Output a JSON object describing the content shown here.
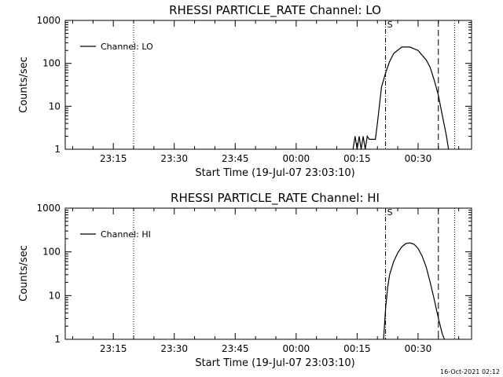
{
  "footer_timestamp": "16-Oct-2021 02:12",
  "colors": {
    "background": "#ffffff",
    "foreground": "#000000"
  },
  "chart_data": [
    {
      "type": "line",
      "title": "RHESSI PARTICLE_RATE Channel: LO",
      "xlabel": "Start Time (19-Jul-07 23:03:10)",
      "ylabel": "Counts/sec",
      "y_scale": "log",
      "ylim": [
        1,
        1000
      ],
      "y_ticks": [
        {
          "value": 1,
          "label": "1"
        },
        {
          "value": 10,
          "label": "10"
        },
        {
          "value": 100,
          "label": "100"
        },
        {
          "value": 1000,
          "label": "1000"
        }
      ],
      "xlim": [
        "23:03:10",
        "00:43:10"
      ],
      "x_ticks": [
        "23:15",
        "23:30",
        "23:45",
        "00:00",
        "00:15",
        "00:30"
      ],
      "grid": false,
      "legend_position": "top-left",
      "series": [
        {
          "name": "Channel: LO",
          "x": [
            "00:14",
            "00:14:30",
            "00:15",
            "00:15:30",
            "00:16",
            "00:16:30",
            "00:17",
            "00:17:30",
            "00:18",
            "00:19",
            "00:19:30",
            "00:20",
            "00:21",
            "00:22",
            "00:23",
            "00:24",
            "00:26",
            "00:28",
            "00:30",
            "00:32",
            "00:33",
            "00:34",
            "00:35",
            "00:36",
            "00:37",
            "00:37:30"
          ],
          "y": [
            1,
            2,
            1,
            2,
            1,
            2,
            1,
            2,
            1.7,
            1.7,
            1.7,
            4,
            28,
            60,
            110,
            170,
            240,
            240,
            200,
            120,
            80,
            40,
            18,
            6,
            2,
            1
          ]
        }
      ],
      "vertical_markers": [
        {
          "time": "23:20",
          "style": "dotted"
        },
        {
          "time": "00:22",
          "style": "dash-dot",
          "label": "S"
        },
        {
          "time": "00:35",
          "style": "dashed"
        },
        {
          "time": "00:39",
          "style": "dotted"
        }
      ]
    },
    {
      "type": "line",
      "title": "RHESSI PARTICLE_RATE Channel: HI",
      "xlabel": "Start Time (19-Jul-07 23:03:10)",
      "ylabel": "Counts/sec",
      "y_scale": "log",
      "ylim": [
        1,
        1000
      ],
      "y_ticks": [
        {
          "value": 1,
          "label": "1"
        },
        {
          "value": 10,
          "label": "10"
        },
        {
          "value": 100,
          "label": "100"
        },
        {
          "value": 1000,
          "label": "1000"
        }
      ],
      "xlim": [
        "23:03:10",
        "00:43:10"
      ],
      "x_ticks": [
        "23:15",
        "23:30",
        "23:45",
        "00:00",
        "00:15",
        "00:30"
      ],
      "grid": false,
      "legend_position": "top-left",
      "series": [
        {
          "name": "Channel: HI",
          "x": [
            "00:21:30",
            "00:22",
            "00:22:30",
            "00:23",
            "00:24",
            "00:25",
            "00:26",
            "00:27",
            "00:28",
            "00:29",
            "00:30",
            "00:31",
            "00:32",
            "00:33",
            "00:34",
            "00:35",
            "00:36",
            "00:36:30"
          ],
          "y": [
            1,
            5,
            15,
            30,
            60,
            95,
            130,
            155,
            160,
            150,
            120,
            80,
            45,
            20,
            8,
            3,
            1.3,
            1
          ]
        }
      ],
      "vertical_markers": [
        {
          "time": "23:20",
          "style": "dotted"
        },
        {
          "time": "00:22",
          "style": "dash-dot",
          "label": "S"
        },
        {
          "time": "00:35",
          "style": "dashed"
        },
        {
          "time": "00:39",
          "style": "dotted"
        }
      ]
    }
  ]
}
